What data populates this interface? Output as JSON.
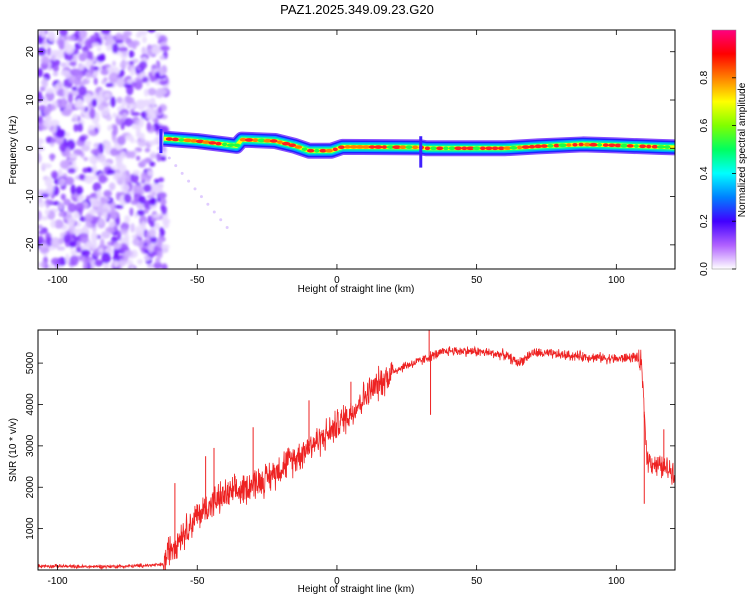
{
  "figure": {
    "title": "PAZ1.2025.349.09.23.G20"
  },
  "chart_data": [
    {
      "type": "heatmap",
      "title": "",
      "xlabel": "Height of straight line (km)",
      "ylabel": "Frequency (Hz)",
      "xlim": [
        -107,
        121
      ],
      "ylim": [
        -25,
        24.5
      ],
      "x_ticks": [
        -100,
        -50,
        0,
        50,
        100
      ],
      "y_ticks": [
        -20,
        -10,
        0,
        10,
        20
      ],
      "noise_region_x": [
        -107,
        -62
      ],
      "trace": [
        {
          "x": -62,
          "y": 2
        },
        {
          "x": -50,
          "y": 1.5
        },
        {
          "x": -40,
          "y": 0.8
        },
        {
          "x": -36,
          "y": 0.5
        },
        {
          "x": -34,
          "y": 1.8
        },
        {
          "x": -22,
          "y": 1.5
        },
        {
          "x": -15,
          "y": 0.5
        },
        {
          "x": -10,
          "y": -0.5
        },
        {
          "x": -2,
          "y": -0.5
        },
        {
          "x": 2,
          "y": 0.3
        },
        {
          "x": 30,
          "y": 0.2
        },
        {
          "x": 32,
          "y": 0.0
        },
        {
          "x": 60,
          "y": 0.0
        },
        {
          "x": 72,
          "y": 0.4
        },
        {
          "x": 88,
          "y": 0.8
        },
        {
          "x": 100,
          "y": 0.6
        },
        {
          "x": 115,
          "y": 0.3
        },
        {
          "x": 121,
          "y": 0.2
        }
      ],
      "colorbar": {
        "label": "Normalized spectral amplitude",
        "ticks": [
          0.0,
          0.2,
          0.4,
          0.6,
          0.8
        ],
        "range": [
          0,
          1
        ],
        "colors": [
          "#ffffff",
          "#b060ff",
          "#4000ff",
          "#0080ff",
          "#00ffff",
          "#00ff60",
          "#80ff00",
          "#ffff00",
          "#ff8000",
          "#ff0000",
          "#ff0080"
        ]
      }
    },
    {
      "type": "line",
      "title": "",
      "xlabel": "Height of straight line (km)",
      "ylabel": "SNR (10 * v/v)",
      "xlim": [
        -107,
        121
      ],
      "ylim": [
        0,
        5800
      ],
      "x_ticks": [
        -100,
        -50,
        0,
        50,
        100
      ],
      "y_ticks": [
        1000,
        2000,
        3000,
        4000,
        5000
      ],
      "color": "#ee2222",
      "x": [
        -107,
        -90,
        -75,
        -62,
        -60,
        -55,
        -50,
        -45,
        -40,
        -35,
        -30,
        -25,
        -20,
        -15,
        -10,
        -5,
        0,
        5,
        10,
        15,
        20,
        25,
        30,
        33,
        40,
        50,
        60,
        65,
        70,
        80,
        90,
        100,
        107,
        109,
        111,
        115,
        121
      ],
      "values": [
        100,
        80,
        90,
        130,
        500,
        900,
        1300,
        1600,
        1800,
        1900,
        2100,
        2200,
        2500,
        2700,
        3000,
        3200,
        3500,
        3800,
        4200,
        4500,
        4800,
        4950,
        5050,
        5150,
        5300,
        5280,
        5200,
        5000,
        5250,
        5200,
        5150,
        5100,
        5150,
        4950,
        2700,
        2500,
        2400
      ],
      "spikes": [
        {
          "x": -58,
          "y": 2100
        },
        {
          "x": -47,
          "y": 2750
        },
        {
          "x": -44,
          "y": 2950
        },
        {
          "x": -30,
          "y": 3450
        },
        {
          "x": -10,
          "y": 4100
        },
        {
          "x": 5,
          "y": 4550
        },
        {
          "x": 33,
          "y": 5800
        },
        {
          "x": 33.5,
          "y": 3750
        },
        {
          "x": 110,
          "y": 1600
        },
        {
          "x": 117,
          "y": 3400
        }
      ]
    }
  ]
}
